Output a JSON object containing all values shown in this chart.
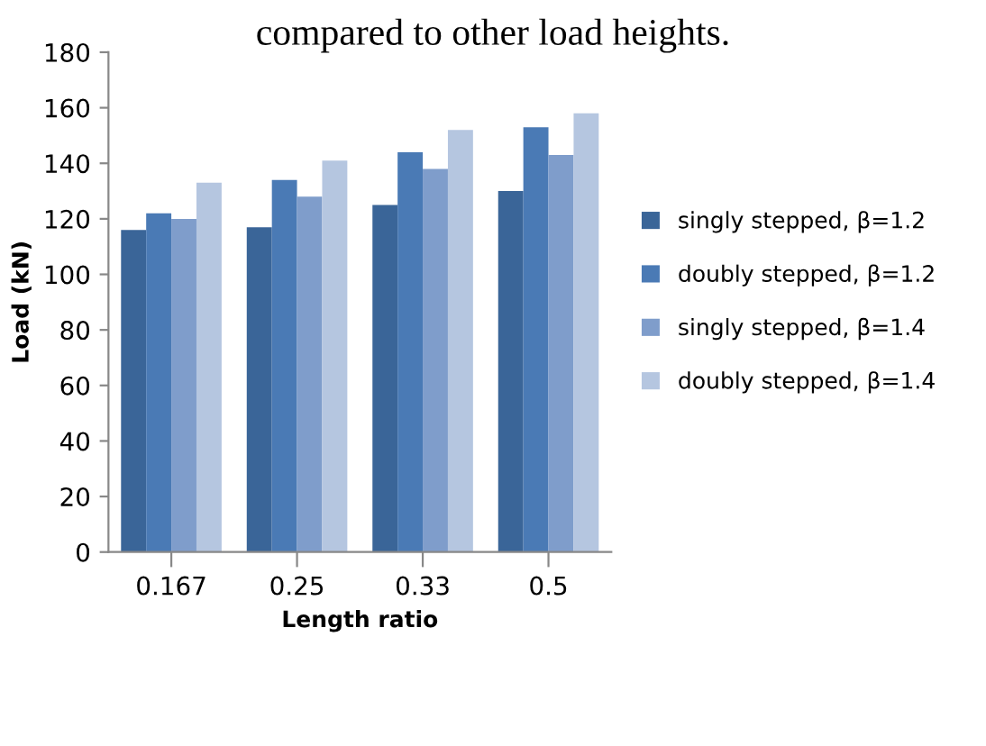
{
  "chart_data": {
    "type": "bar",
    "xlabel": "Length ratio",
    "ylabel": "Load (kN)",
    "annotations": [
      "compared to other load heights."
    ],
    "categories": [
      "0.167",
      "0.25",
      "0.33",
      "0.5"
    ],
    "series": [
      {
        "name": "singly stepped, β=1.2",
        "color": "#3a6598",
        "values": [
          116,
          117,
          125,
          130
        ]
      },
      {
        "name": "doubly stepped, β=1.2",
        "color": "#4a7ab5",
        "values": [
          122,
          134,
          144,
          153
        ]
      },
      {
        "name": "singly stepped, β=1.4",
        "color": "#7f9dcb",
        "values": [
          120,
          128,
          138,
          143
        ]
      },
      {
        "name": "doubly stepped, β=1.4",
        "color": "#b5c6e0",
        "values": [
          133,
          141,
          152,
          158
        ]
      }
    ],
    "ylim": [
      0,
      180
    ],
    "yticks": [
      0,
      20,
      40,
      60,
      80,
      100,
      120,
      140,
      160,
      180
    ],
    "grid": false,
    "legend": "right"
  }
}
